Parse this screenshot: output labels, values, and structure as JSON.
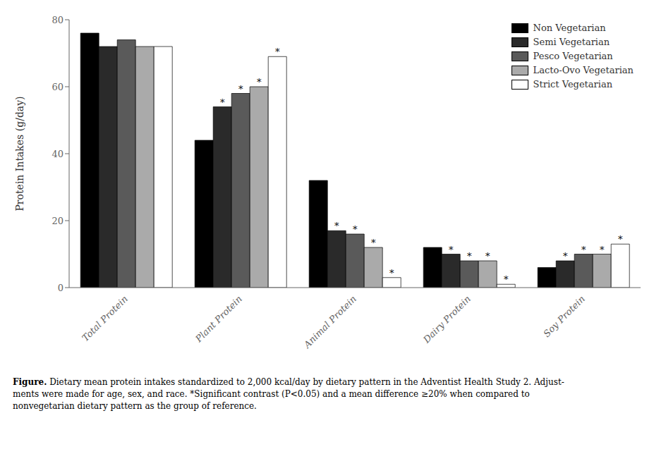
{
  "chart_data": {
    "type": "bar",
    "categories": [
      "Total Protein",
      "Plant Protein",
      "Animal Protein",
      "Dairy Protein",
      "Soy Protein"
    ],
    "series": [
      {
        "name": "Non Vegetarian",
        "color": "#000000",
        "values": [
          76,
          44,
          32,
          12,
          6
        ]
      },
      {
        "name": "Semi Vegetarian",
        "color": "#2a2a2a",
        "values": [
          72,
          54,
          17,
          10,
          8
        ]
      },
      {
        "name": "Pesco Vegetarian",
        "color": "#5a5a5a",
        "values": [
          74,
          58,
          16,
          8,
          10
        ]
      },
      {
        "name": "Lacto-Ovo Vegetarian",
        "color": "#aaaaaa",
        "values": [
          72,
          60,
          12,
          8,
          10
        ]
      },
      {
        "name": "Strict Vegetarian",
        "color": "#ffffff",
        "values": [
          72,
          69,
          3,
          1,
          13
        ]
      }
    ],
    "annotations": [
      {
        "text": "*",
        "series": "Semi Vegetarian",
        "category": "Plant Protein"
      },
      {
        "text": "*",
        "series": "Pesco Vegetarian",
        "category": "Plant Protein"
      },
      {
        "text": "*",
        "series": "Lacto-Ovo Vegetarian",
        "category": "Plant Protein"
      },
      {
        "text": "*",
        "series": "Strict Vegetarian",
        "category": "Plant Protein"
      },
      {
        "text": "*",
        "series": "Semi Vegetarian",
        "category": "Animal Protein"
      },
      {
        "text": "*",
        "series": "Pesco Vegetarian",
        "category": "Animal Protein"
      },
      {
        "text": "*",
        "series": "Lacto-Ovo Vegetarian",
        "category": "Animal Protein"
      },
      {
        "text": "*",
        "series": "Strict Vegetarian",
        "category": "Animal Protein"
      },
      {
        "text": "*",
        "series": "Semi Vegetarian",
        "category": "Dairy Protein"
      },
      {
        "text": "*",
        "series": "Pesco Vegetarian",
        "category": "Dairy Protein"
      },
      {
        "text": "*",
        "series": "Lacto-Ovo Vegetarian",
        "category": "Dairy Protein"
      },
      {
        "text": "*",
        "series": "Strict Vegetarian",
        "category": "Dairy Protein"
      },
      {
        "text": "*",
        "series": "Semi Vegetarian",
        "category": "Soy Protein"
      },
      {
        "text": "*",
        "series": "Pesco Vegetarian",
        "category": "Soy Protein"
      },
      {
        "text": "*",
        "series": "Lacto-Ovo Vegetarian",
        "category": "Soy Protein"
      },
      {
        "text": "*",
        "series": "Strict Vegetarian",
        "category": "Soy Protein"
      }
    ],
    "ylabel": "Protein Intakes (g/day)",
    "ylim": [
      0,
      80
    ],
    "yticks": [
      0,
      20,
      40,
      60,
      80
    ],
    "grid": false,
    "legend": "upper right",
    "caption_bold": "Figure.",
    "caption": " Dietary mean protein intakes standardized to 2,000 kcal/day by dietary pattern in the Adventist Health Study 2. Adjust-\nments were made for age, sex, and race. *Significant contrast (P<0.05) and a mean difference ≥20% when compared to\nnonvegetarian dietary pattern as the group of reference."
  }
}
